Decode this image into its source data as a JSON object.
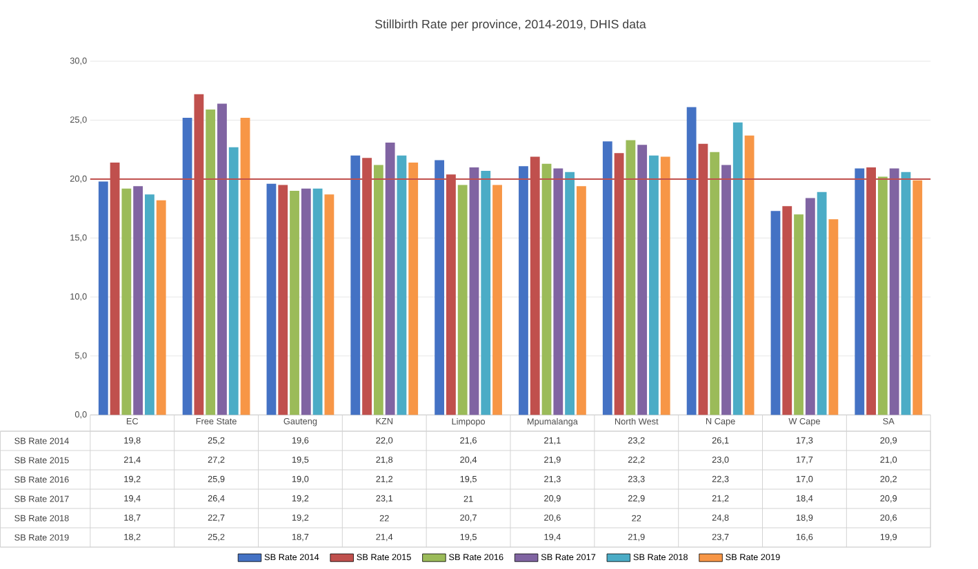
{
  "chart_data": {
    "type": "bar",
    "title": "Stillbirth Rate per province, 2014-2019, DHIS data",
    "categories": [
      "EC",
      "Free State",
      "Gauteng",
      "KZN",
      "Limpopo",
      "Mpumalanga",
      "North West",
      "N Cape",
      "W Cape",
      "SA"
    ],
    "series": [
      {
        "name": "SB Rate 2014",
        "color": "#4472c4",
        "values": [
          19.8,
          25.2,
          19.6,
          22.0,
          21.6,
          21.1,
          23.2,
          26.1,
          17.3,
          20.9
        ],
        "value_labels": [
          "19,8",
          "25,2",
          "19,6",
          "22,0",
          "21,6",
          "21,1",
          "23,2",
          "26,1",
          "17,3",
          "20,9"
        ]
      },
      {
        "name": "SB Rate 2015",
        "color": "#c0504d",
        "values": [
          21.4,
          27.2,
          19.5,
          21.8,
          20.4,
          21.9,
          22.2,
          23.0,
          17.7,
          21.0
        ],
        "value_labels": [
          "21,4",
          "27,2",
          "19,5",
          "21,8",
          "20,4",
          "21,9",
          "22,2",
          "23,0",
          "17,7",
          "21,0"
        ]
      },
      {
        "name": "SB Rate 2016",
        "color": "#9bbb59",
        "values": [
          19.2,
          25.9,
          19.0,
          21.2,
          19.5,
          21.3,
          23.3,
          22.3,
          17.0,
          20.2
        ],
        "value_labels": [
          "19,2",
          "25,9",
          "19,0",
          "21,2",
          "19,5",
          "21,3",
          "23,3",
          "22,3",
          "17,0",
          "20,2"
        ]
      },
      {
        "name": "SB Rate 2017",
        "color": "#8064a2",
        "values": [
          19.4,
          26.4,
          19.2,
          23.1,
          21,
          20.9,
          22.9,
          21.2,
          18.4,
          20.9
        ],
        "value_labels": [
          "19,4",
          "26,4",
          "19,2",
          "23,1",
          "21",
          "20,9",
          "22,9",
          "21,2",
          "18,4",
          "20,9"
        ]
      },
      {
        "name": "SB Rate 2018",
        "color": "#4bacc6",
        "values": [
          18.7,
          22.7,
          19.2,
          22,
          20.7,
          20.6,
          22,
          24.8,
          18.9,
          20.6
        ],
        "value_labels": [
          "18,7",
          "22,7",
          "19,2",
          "22",
          "20,7",
          "20,6",
          "22",
          "24,8",
          "18,9",
          "20,6"
        ]
      },
      {
        "name": "SB Rate 2019",
        "color": "#f79646",
        "values": [
          18.2,
          25.2,
          18.7,
          21.4,
          19.5,
          19.4,
          21.9,
          23.7,
          16.6,
          19.9
        ],
        "value_labels": [
          "18,2",
          "25,2",
          "18,7",
          "21,4",
          "19,5",
          "19,4",
          "21,9",
          "23,7",
          "16,6",
          "19,9"
        ]
      }
    ],
    "ylim": [
      0,
      30
    ],
    "yticks": [
      {
        "value": 0,
        "label": "0,0"
      },
      {
        "value": 5,
        "label": "5,0"
      },
      {
        "value": 10,
        "label": "10,0"
      },
      {
        "value": 15,
        "label": "15,0"
      },
      {
        "value": 20,
        "label": "20,0"
      },
      {
        "value": 25,
        "label": "25,0"
      },
      {
        "value": 30,
        "label": "30,0"
      }
    ],
    "ref_lines": [
      {
        "axis": "y",
        "value": 20,
        "color": "#c0504d"
      }
    ],
    "grid": "y",
    "legend": "bottom"
  }
}
